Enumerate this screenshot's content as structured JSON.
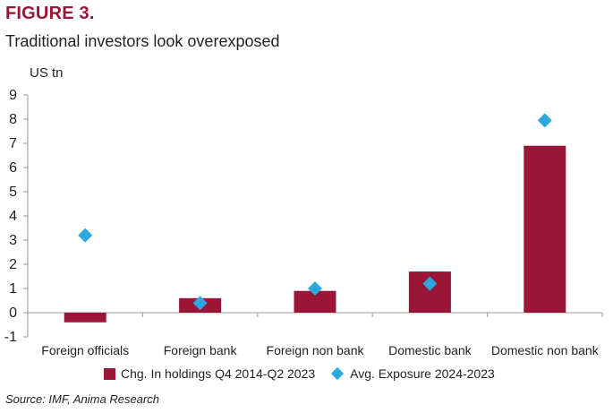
{
  "figure_label": "FIGURE 3.",
  "title": "Traditional investors look overexposed",
  "source": "Source: IMF, Anima Research",
  "colors": {
    "bar": "#9b1536",
    "marker": "#2aa8df",
    "axis": "#9a9a9a"
  },
  "chart_data": {
    "type": "bar",
    "title": "Traditional investors look overexposed",
    "ylabel": "US tn",
    "ylim": [
      -1,
      9
    ],
    "yticks": [
      -1,
      0,
      1,
      2,
      3,
      4,
      5,
      6,
      7,
      8,
      9
    ],
    "grid": false,
    "legend_position": "bottom",
    "categories": [
      "Foreign officials",
      "Foreign bank",
      "Foreign non bank",
      "Domestic bank",
      "Domestic non bank"
    ],
    "series": [
      {
        "name": "Chg. In holdings Q4 2014-Q2 2023",
        "kind": "bar",
        "values": [
          -0.4,
          0.6,
          0.9,
          1.7,
          6.9
        ]
      },
      {
        "name": "Avg. Exposure 2024-2023",
        "kind": "marker",
        "values": [
          3.2,
          0.4,
          1.0,
          1.2,
          7.95
        ]
      }
    ]
  }
}
